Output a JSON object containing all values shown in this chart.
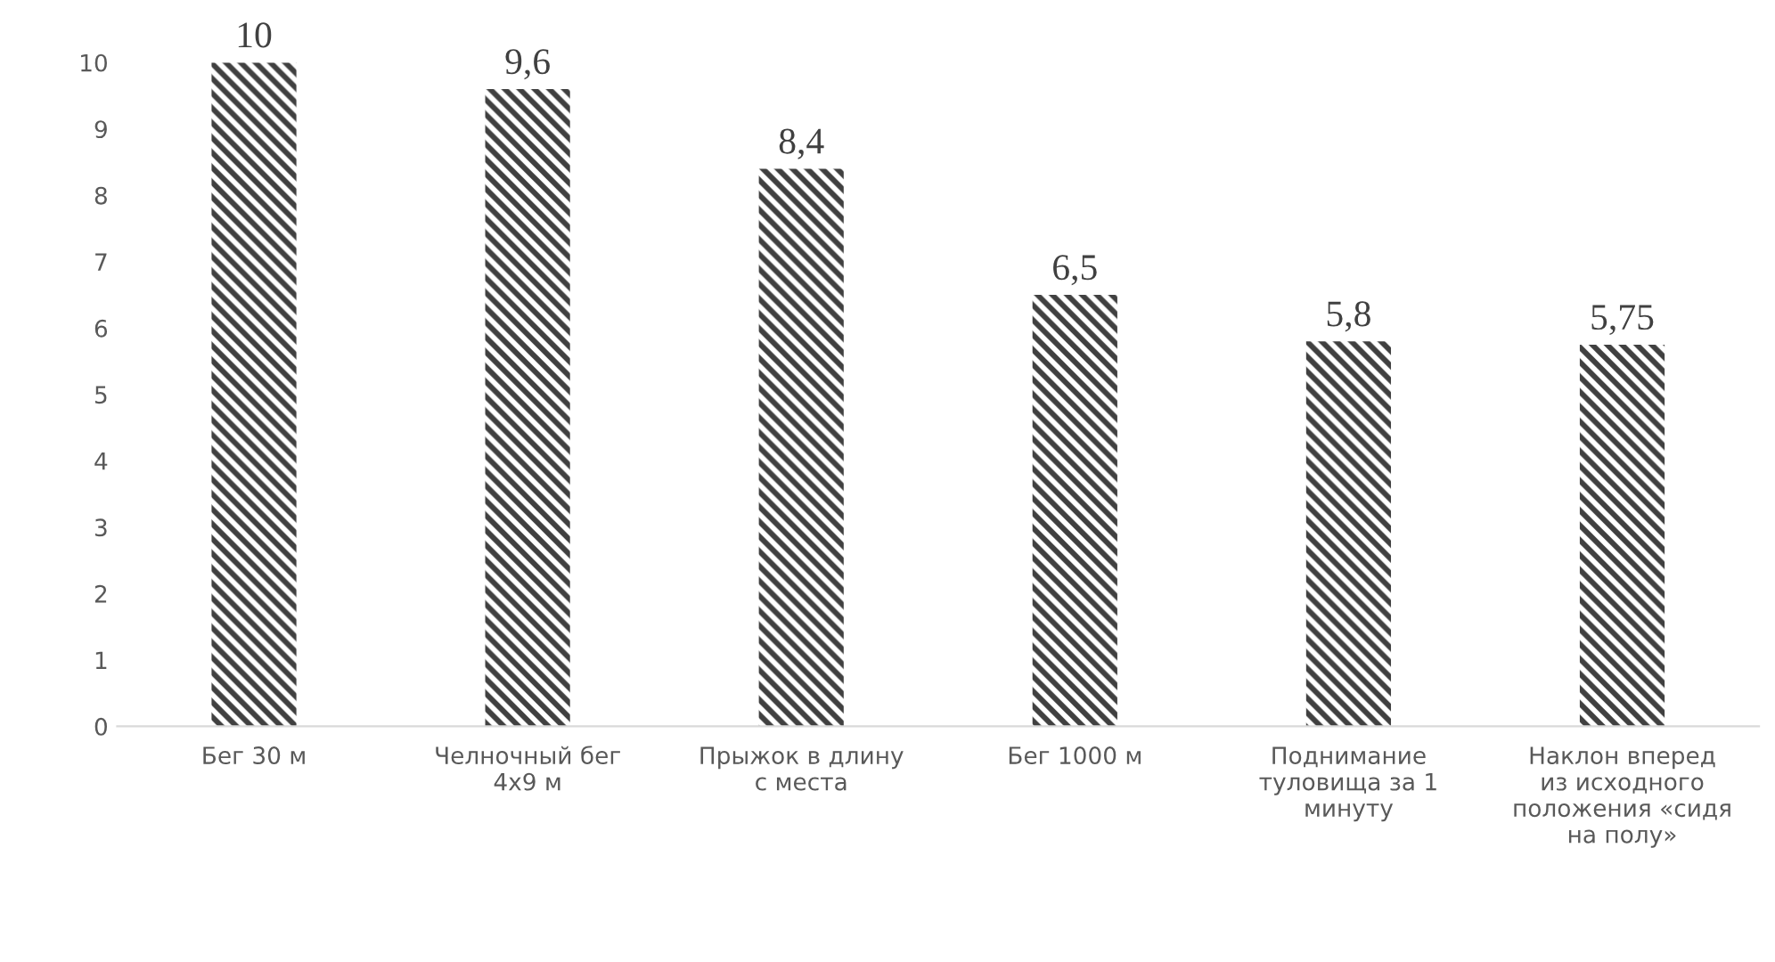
{
  "chart_data": {
    "type": "bar",
    "categories": [
      "Бег 30 м",
      "Челночный бег 4х9 м",
      "Прыжок в длину с места",
      "Бег 1000 м",
      "Поднимание туловища за 1 минуту",
      "Наклон вперед из исходного положения «сидя на полу»"
    ],
    "values": [
      10,
      9.6,
      8.4,
      6.5,
      5.8,
      5.75
    ],
    "value_labels": [
      "10",
      "9,6",
      "8,4",
      "6,5",
      "5,8",
      "5,75"
    ],
    "color": "#404040",
    "ylim": [
      0,
      10
    ],
    "yticks": [
      0,
      1,
      2,
      3,
      4,
      5,
      6,
      7,
      8,
      9,
      10
    ],
    "grid": false,
    "legend": false
  }
}
